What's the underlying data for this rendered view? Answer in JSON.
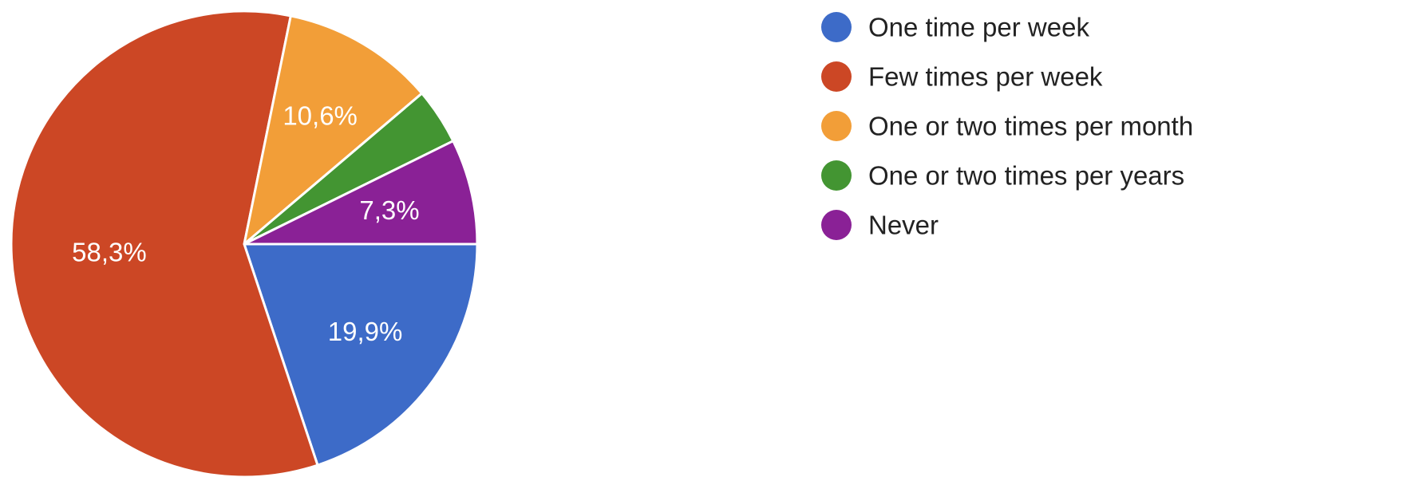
{
  "chart_data": {
    "type": "pie",
    "start_angle_deg": 90,
    "direction": "clockwise",
    "slices": [
      {
        "name": "One time per week",
        "value": 19.9,
        "label": "19,9%",
        "color": "#3d6bc8"
      },
      {
        "name": "Few times per week",
        "value": 58.3,
        "label": "58,3%",
        "color": "#cc4725"
      },
      {
        "name": "One or two times per month",
        "value": 10.6,
        "label": "10,6%",
        "color": "#f29e38"
      },
      {
        "name": "One or two times per years",
        "value": 3.9,
        "label": "",
        "color": "#439532"
      },
      {
        "name": "Never",
        "value": 7.3,
        "label": "7,3%",
        "color": "#8a2196"
      }
    ],
    "legend_position": "right"
  }
}
